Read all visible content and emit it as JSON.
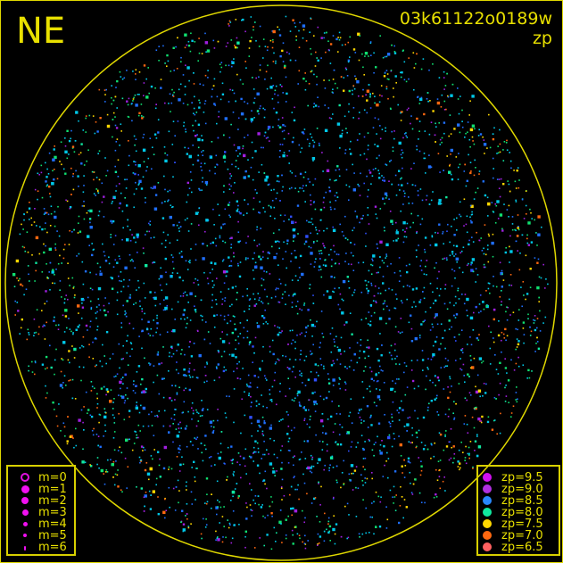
{
  "direction_label": "NE",
  "image_id": "03k61122o0189w",
  "mode_label": "zp",
  "colors": {
    "frame": "#e0d800",
    "background": "#000000"
  },
  "chart_data": {
    "type": "scatter",
    "title": "03k61122o0189w",
    "subtitle": "zp",
    "grid": false,
    "magnitude_legend": [
      {
        "label": "m=0",
        "hollow": true
      },
      {
        "label": "m=1"
      },
      {
        "label": "m=2"
      },
      {
        "label": "m=3"
      },
      {
        "label": "m=4"
      },
      {
        "label": "m=5"
      },
      {
        "label": "m=6"
      }
    ],
    "zp_legend": [
      {
        "label": "zp=9.5",
        "color": "#d010f0"
      },
      {
        "label": "zp=9.0",
        "color": "#b030e0"
      },
      {
        "label": "zp=8.5",
        "color": "#2888ff"
      },
      {
        "label": "zp=8.0",
        "color": "#10e8a0"
      },
      {
        "label": "zp=7.5",
        "color": "#ffd800"
      },
      {
        "label": "zp=7.0",
        "color": "#ff6810"
      },
      {
        "label": "zp=6.5",
        "color": "#ff6060"
      }
    ],
    "magnitude_legend_position": "bottom-left",
    "zp_legend_position": "bottom-right"
  }
}
